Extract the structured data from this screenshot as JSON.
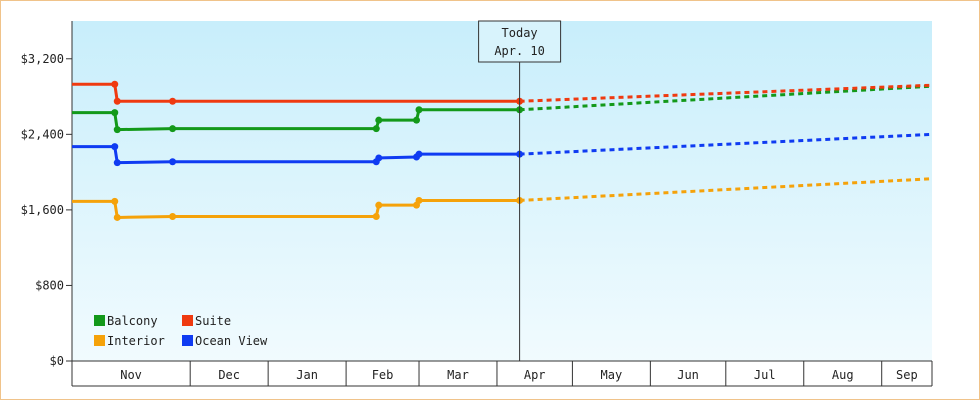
{
  "chart_data": {
    "type": "line",
    "title": "",
    "xlabel": "",
    "ylabel": "",
    "ylim": [
      0,
      3600
    ],
    "y_ticks": [
      {
        "value": 0,
        "label": "$0"
      },
      {
        "value": 800,
        "label": "$800"
      },
      {
        "value": 1600,
        "label": "$1,600"
      },
      {
        "value": 2400,
        "label": "$2,400"
      },
      {
        "value": 3200,
        "label": "$3,200"
      }
    ],
    "xlim": [
      "2023-10-15",
      "2024-09-21"
    ],
    "months": [
      {
        "label": "Nov",
        "start": "2023-10-15",
        "end": "2023-11-30"
      },
      {
        "label": "Dec",
        "start": "2023-12-01",
        "end": "2023-12-31"
      },
      {
        "label": "Jan",
        "start": "2024-01-01",
        "end": "2024-01-31"
      },
      {
        "label": "Feb",
        "start": "2024-02-01",
        "end": "2024-02-29"
      },
      {
        "label": "Mar",
        "start": "2024-03-01",
        "end": "2024-03-31"
      },
      {
        "label": "Apr",
        "start": "2024-04-01",
        "end": "2024-04-30"
      },
      {
        "label": "May",
        "start": "2024-05-01",
        "end": "2024-05-31"
      },
      {
        "label": "Jun",
        "start": "2024-06-01",
        "end": "2024-06-30"
      },
      {
        "label": "Jul",
        "start": "2024-07-01",
        "end": "2024-07-31"
      },
      {
        "label": "Aug",
        "start": "2024-08-01",
        "end": "2024-08-31"
      },
      {
        "label": "Sep",
        "start": "2024-09-01",
        "end": "2024-09-21"
      }
    ],
    "today": {
      "date": "2024-04-10",
      "label_line1": "Today",
      "label_line2": "Apr. 10"
    },
    "grid": false,
    "legend_position": "bottom-left",
    "series": [
      {
        "name": "Balcony",
        "color": "#13991a",
        "points": [
          [
            "2023-10-15",
            2630
          ],
          [
            "2023-11-01",
            2630
          ],
          [
            "2023-11-02",
            2450
          ],
          [
            "2023-11-24",
            2460
          ],
          [
            "2024-02-13",
            2460
          ],
          [
            "2024-02-14",
            2550
          ],
          [
            "2024-02-29",
            2550
          ],
          [
            "2024-03-01",
            2660
          ],
          [
            "2024-04-10",
            2660
          ]
        ],
        "forecast": [
          [
            "2024-04-10",
            2660
          ],
          [
            "2024-09-21",
            2910
          ]
        ]
      },
      {
        "name": "Suite",
        "color": "#ef3a10",
        "points": [
          [
            "2023-10-15",
            2930
          ],
          [
            "2023-11-01",
            2930
          ],
          [
            "2023-11-02",
            2750
          ],
          [
            "2023-11-24",
            2750
          ],
          [
            "2024-04-10",
            2750
          ]
        ],
        "forecast": [
          [
            "2024-04-10",
            2750
          ],
          [
            "2024-09-21",
            2920
          ]
        ]
      },
      {
        "name": "Interior",
        "color": "#f5a20a",
        "points": [
          [
            "2023-10-15",
            1690
          ],
          [
            "2023-11-01",
            1690
          ],
          [
            "2023-11-02",
            1520
          ],
          [
            "2023-11-24",
            1530
          ],
          [
            "2024-02-13",
            1530
          ],
          [
            "2024-02-14",
            1650
          ],
          [
            "2024-02-29",
            1650
          ],
          [
            "2024-03-01",
            1700
          ],
          [
            "2024-04-10",
            1700
          ]
        ],
        "forecast": [
          [
            "2024-04-10",
            1700
          ],
          [
            "2024-09-21",
            1930
          ]
        ]
      },
      {
        "name": "Ocean View",
        "color": "#0f3bf2",
        "points": [
          [
            "2023-10-15",
            2270
          ],
          [
            "2023-11-01",
            2270
          ],
          [
            "2023-11-02",
            2100
          ],
          [
            "2023-11-24",
            2110
          ],
          [
            "2024-02-13",
            2110
          ],
          [
            "2024-02-14",
            2150
          ],
          [
            "2024-02-29",
            2160
          ],
          [
            "2024-03-01",
            2190
          ],
          [
            "2024-04-10",
            2190
          ]
        ],
        "forecast": [
          [
            "2024-04-10",
            2190
          ],
          [
            "2024-09-21",
            2400
          ]
        ]
      }
    ],
    "legend": [
      {
        "label": "Balcony",
        "color": "#13991a"
      },
      {
        "label": "Suite",
        "color": "#ef3a10"
      },
      {
        "label": "Interior",
        "color": "#f5a20a"
      },
      {
        "label": "Ocean View",
        "color": "#0f3bf2"
      }
    ],
    "colors": {
      "plot_bg_top": "#c8eefb",
      "plot_bg_bottom": "#f1fbfe",
      "axis": "#333333",
      "frame_border": "#f0c38a"
    }
  }
}
